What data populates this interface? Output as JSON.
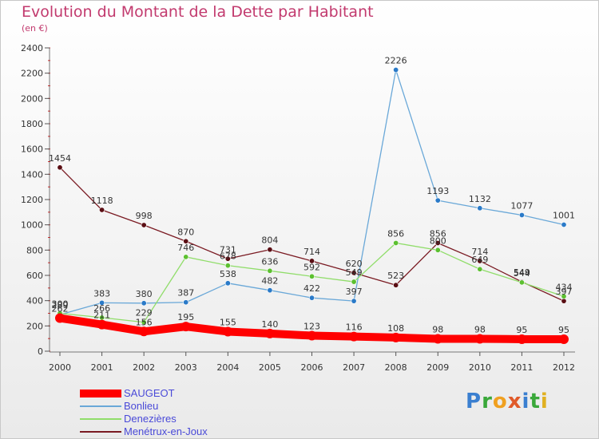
{
  "title": "Evolution du Montant de la Dette par Habitant",
  "subtitle": "(en €)",
  "logo": {
    "letters": [
      {
        "ch": "P",
        "color": "#3a7fd0"
      },
      {
        "ch": "r",
        "color": "#3aa83a"
      },
      {
        "ch": "o",
        "color": "#f0a020"
      },
      {
        "ch": "x",
        "color": "#e05a2a"
      },
      {
        "ch": "i",
        "color": "#3a7fd0"
      },
      {
        "ch": "t",
        "color": "#3aa83a"
      },
      {
        "ch": "i",
        "color": "#e0b020"
      }
    ]
  },
  "chart_data": {
    "type": "line",
    "title": "Evolution du Montant de la Dette par Habitant",
    "ylabel": "(en €)",
    "x": [
      "2000",
      "2001",
      "2002",
      "2003",
      "2004",
      "2005",
      "2006",
      "2007",
      "2008",
      "2009",
      "2010",
      "2011",
      "2012"
    ],
    "ylim": [
      0,
      2400
    ],
    "yticks": [
      0,
      200,
      400,
      600,
      800,
      1000,
      1200,
      1400,
      1600,
      1800,
      2000,
      2200,
      2400
    ],
    "grid": false,
    "legend_position": "bottom-left",
    "series": [
      {
        "name": "Menétrux-en-Joux",
        "color": "#7a1a22",
        "marker": "#5a0e14",
        "thick": false,
        "values": [
          1454,
          1118,
          998,
          870,
          731,
          804,
          714,
          620,
          523,
          856,
          714,
          549,
          397
        ],
        "labels": [
          "1454",
          "1118",
          "998",
          "870",
          "731",
          "804",
          "714",
          "620",
          "523",
          "856",
          "714",
          "549",
          "397"
        ]
      },
      {
        "name": "Bonlieu",
        "color": "#6aa8d8",
        "marker": "#2a7ac8",
        "thick": false,
        "values": [
          289,
          383,
          380,
          387,
          538,
          482,
          422,
          397,
          2226,
          1193,
          1132,
          1077,
          1001
        ],
        "labels": [
          "289",
          "383",
          "380",
          "387",
          "538",
          "482",
          "422",
          "397",
          "2226",
          "1193",
          "1132",
          "1077",
          "1001"
        ]
      },
      {
        "name": "Denezières",
        "color": "#90dd6a",
        "marker": "#5cc030",
        "thick": false,
        "values": [
          300,
          266,
          229,
          746,
          678,
          636,
          592,
          549,
          856,
          800,
          649,
          544,
          434
        ],
        "labels": [
          "300",
          "266",
          "229",
          "746",
          "678",
          "636",
          "592",
          "549",
          "856",
          "800",
          "649",
          "544",
          "434"
        ]
      },
      {
        "name": "SAUGEOT",
        "color": "#ff0000",
        "marker": "#ff0000",
        "thick": true,
        "values": [
          262,
          211,
          156,
          195,
          155,
          140,
          123,
          116,
          108,
          98,
          98,
          95,
          95
        ],
        "labels": [
          "262",
          "211",
          "156",
          "195",
          "155",
          "140",
          "123",
          "116",
          "108",
          "98",
          "98",
          "95",
          "95"
        ]
      }
    ],
    "legend": [
      {
        "name": "SAUGEOT",
        "color": "#ff0000",
        "thick": true
      },
      {
        "name": "Bonlieu",
        "color": "#6aa8d8",
        "thick": false
      },
      {
        "name": "Denezières",
        "color": "#90dd6a",
        "thick": false
      },
      {
        "name": "Menétrux-en-Joux",
        "color": "#7a1a22",
        "thick": false
      }
    ]
  }
}
